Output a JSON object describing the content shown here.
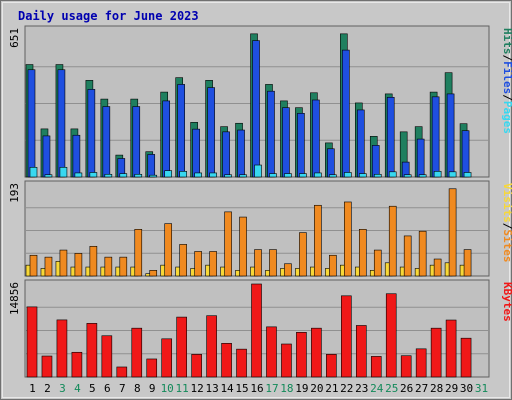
{
  "chart_data": {
    "type": "bar",
    "title": "Daily usage for June 2023",
    "days": [
      "1",
      "2",
      "3",
      "4",
      "5",
      "6",
      "7",
      "8",
      "9",
      "10",
      "11",
      "12",
      "13",
      "14",
      "15",
      "16",
      "17",
      "18",
      "19",
      "20",
      "21",
      "22",
      "23",
      "24",
      "25",
      "26",
      "27",
      "28",
      "29",
      "30",
      "31"
    ],
    "weekend_days": [
      3,
      4,
      10,
      11,
      17,
      18,
      24,
      25,
      31
    ],
    "colors": {
      "hits": "#1f7f5f",
      "files": "#1f4fe0",
      "pages": "#38d8f0",
      "visits": "#f8d838",
      "sites": "#f08a20",
      "kbytes": "#f01818",
      "panel_bg": "#c0c0c0",
      "title": "#0000b0",
      "weekday_label": "#000000",
      "weekend_label": "#138a5a"
    },
    "panels": [
      {
        "max_label": "651",
        "ymax": 651,
        "legend": [
          {
            "text": "Hits",
            "color": "#1f7f5f"
          },
          {
            "text": "/",
            "color": "#000000"
          },
          {
            "text": "Files",
            "color": "#1f4fe0"
          },
          {
            "text": "/",
            "color": "#000000"
          },
          {
            "text": "Pages",
            "color": "#38d8f0"
          }
        ],
        "series": [
          {
            "key": "hits",
            "values": [
              498,
              213,
              498,
              213,
              428,
              345,
              97,
              345,
              112,
              376,
              440,
              242,
              428,
              223,
              238,
              634,
              410,
              337,
              307,
              373,
              151,
              634,
              328,
              180,
              368,
              200,
              223,
              376,
              462,
              236,
              0
            ]
          },
          {
            "key": "files",
            "values": [
              475,
              182,
              475,
              185,
              388,
              312,
              82,
              312,
              100,
              337,
              410,
              212,
              396,
              200,
              208,
              604,
              380,
              307,
              282,
              341,
              125,
              562,
              297,
              140,
              353,
              66,
              168,
              355,
              368,
              205,
              0
            ]
          },
          {
            "key": "pages",
            "values": [
              43,
              10,
              43,
              18,
              20,
              12,
              15,
              12,
              8,
              28,
              25,
              18,
              18,
              10,
              10,
              53,
              15,
              15,
              15,
              18,
              10,
              20,
              15,
              12,
              23,
              10,
              10,
              25,
              23,
              20,
              0
            ]
          }
        ]
      },
      {
        "max_label": "193",
        "ymax": 193,
        "legend": [
          {
            "text": "Visits",
            "color": "#f8d838"
          },
          {
            "text": "/",
            "color": "#000000"
          },
          {
            "text": "Sites",
            "color": "#f08a20"
          }
        ],
        "series": [
          {
            "key": "visits",
            "values": [
              23,
              16,
              31,
              19,
              19,
              19,
              19,
              19,
              5,
              23,
              19,
              16,
              23,
              19,
              12,
              19,
              12,
              16,
              16,
              19,
              16,
              23,
              19,
              12,
              28,
              19,
              16,
              23,
              28,
              23,
              0
            ]
          },
          {
            "key": "sites",
            "values": [
              44,
              40,
              55,
              48,
              63,
              40,
              40,
              99,
              12,
              111,
              67,
              52,
              52,
              136,
              125,
              56,
              56,
              26,
              92,
              150,
              44,
              157,
              99,
              55,
              148,
              85,
              95,
              36,
              185,
              56,
              0
            ]
          }
        ]
      },
      {
        "max_label": "14856",
        "ymax": 14856,
        "legend": [
          {
            "text": "KBytes",
            "color": "#f01818"
          }
        ],
        "series": [
          {
            "key": "kbytes",
            "values": [
              11200,
              3350,
              9120,
              3950,
              8570,
              6590,
              1600,
              7800,
              2880,
              6100,
              9570,
              3620,
              9790,
              5380,
              4450,
              14856,
              8010,
              5270,
              7140,
              7800,
              3620,
              12970,
              8230,
              3290,
              13300,
              3400,
              4500,
              7800,
              9100,
              6200,
              0
            ]
          }
        ]
      }
    ]
  }
}
